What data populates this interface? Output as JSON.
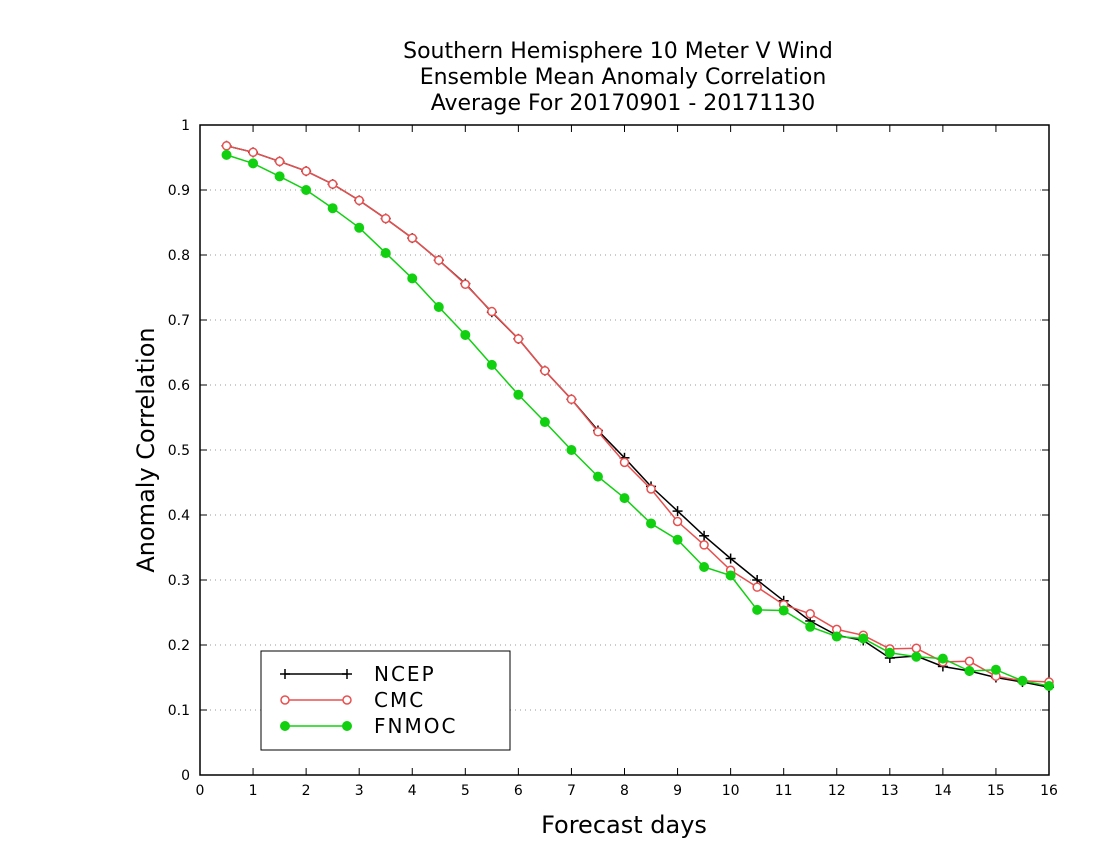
{
  "chart_data": {
    "type": "line",
    "title": [
      "Southern Hemisphere 10 Meter V Wind",
      "Ensemble Mean Anomaly Correlation",
      "Average For 20170901 - 20171130"
    ],
    "xlabel": "Forecast days",
    "ylabel": "Anomaly Correlation",
    "xlim": [
      0,
      16
    ],
    "ylim": [
      0,
      1
    ],
    "x_ticks": [
      "0",
      "1",
      "2",
      "3",
      "4",
      "5",
      "6",
      "7",
      "8",
      "9",
      "10",
      "11",
      "12",
      "13",
      "14",
      "15",
      "16"
    ],
    "y_ticks": [
      "0",
      "0.1",
      "0.2",
      "0.3",
      "0.4",
      "0.5",
      "0.6",
      "0.7",
      "0.8",
      "0.9",
      "1"
    ],
    "grid": "horizontal-dotted",
    "legend_position": "bottom-left",
    "x": [
      0.5,
      1,
      1.5,
      2,
      2.5,
      3,
      3.5,
      4,
      4.5,
      5,
      5.5,
      6,
      6.5,
      7,
      7.5,
      8,
      8.5,
      9,
      9.5,
      10,
      10.5,
      11,
      11.5,
      12,
      12.5,
      13,
      13.5,
      14,
      14.5,
      15,
      15.5,
      16
    ],
    "series": [
      {
        "name": "NCEP",
        "color": "#000000",
        "marker": "plus",
        "values": [
          0.968,
          0.958,
          0.944,
          0.929,
          0.909,
          0.884,
          0.856,
          0.826,
          0.792,
          0.756,
          0.712,
          0.671,
          0.622,
          0.578,
          0.53,
          0.488,
          0.444,
          0.406,
          0.368,
          0.333,
          0.3,
          0.268,
          0.237,
          0.215,
          0.207,
          0.18,
          0.183,
          0.167,
          0.16,
          0.15,
          0.143,
          0.135
        ]
      },
      {
        "name": "CMC",
        "color": "#e85050",
        "marker": "open-circle",
        "values": [
          0.968,
          0.958,
          0.944,
          0.929,
          0.909,
          0.884,
          0.856,
          0.826,
          0.792,
          0.755,
          0.713,
          0.671,
          0.622,
          0.578,
          0.528,
          0.481,
          0.44,
          0.39,
          0.354,
          0.315,
          0.289,
          0.262,
          0.248,
          0.224,
          0.215,
          0.194,
          0.195,
          0.174,
          0.175,
          0.152,
          0.145,
          0.143
        ]
      },
      {
        "name": "FNMOC",
        "color": "#10d010",
        "marker": "filled-circle",
        "values": [
          0.954,
          0.941,
          0.921,
          0.9,
          0.872,
          0.842,
          0.803,
          0.764,
          0.72,
          0.677,
          0.631,
          0.585,
          0.543,
          0.5,
          0.459,
          0.426,
          0.387,
          0.362,
          0.32,
          0.307,
          0.254,
          0.253,
          0.228,
          0.213,
          0.21,
          0.188,
          0.182,
          0.179,
          0.16,
          0.162,
          0.145,
          0.137
        ]
      }
    ]
  }
}
